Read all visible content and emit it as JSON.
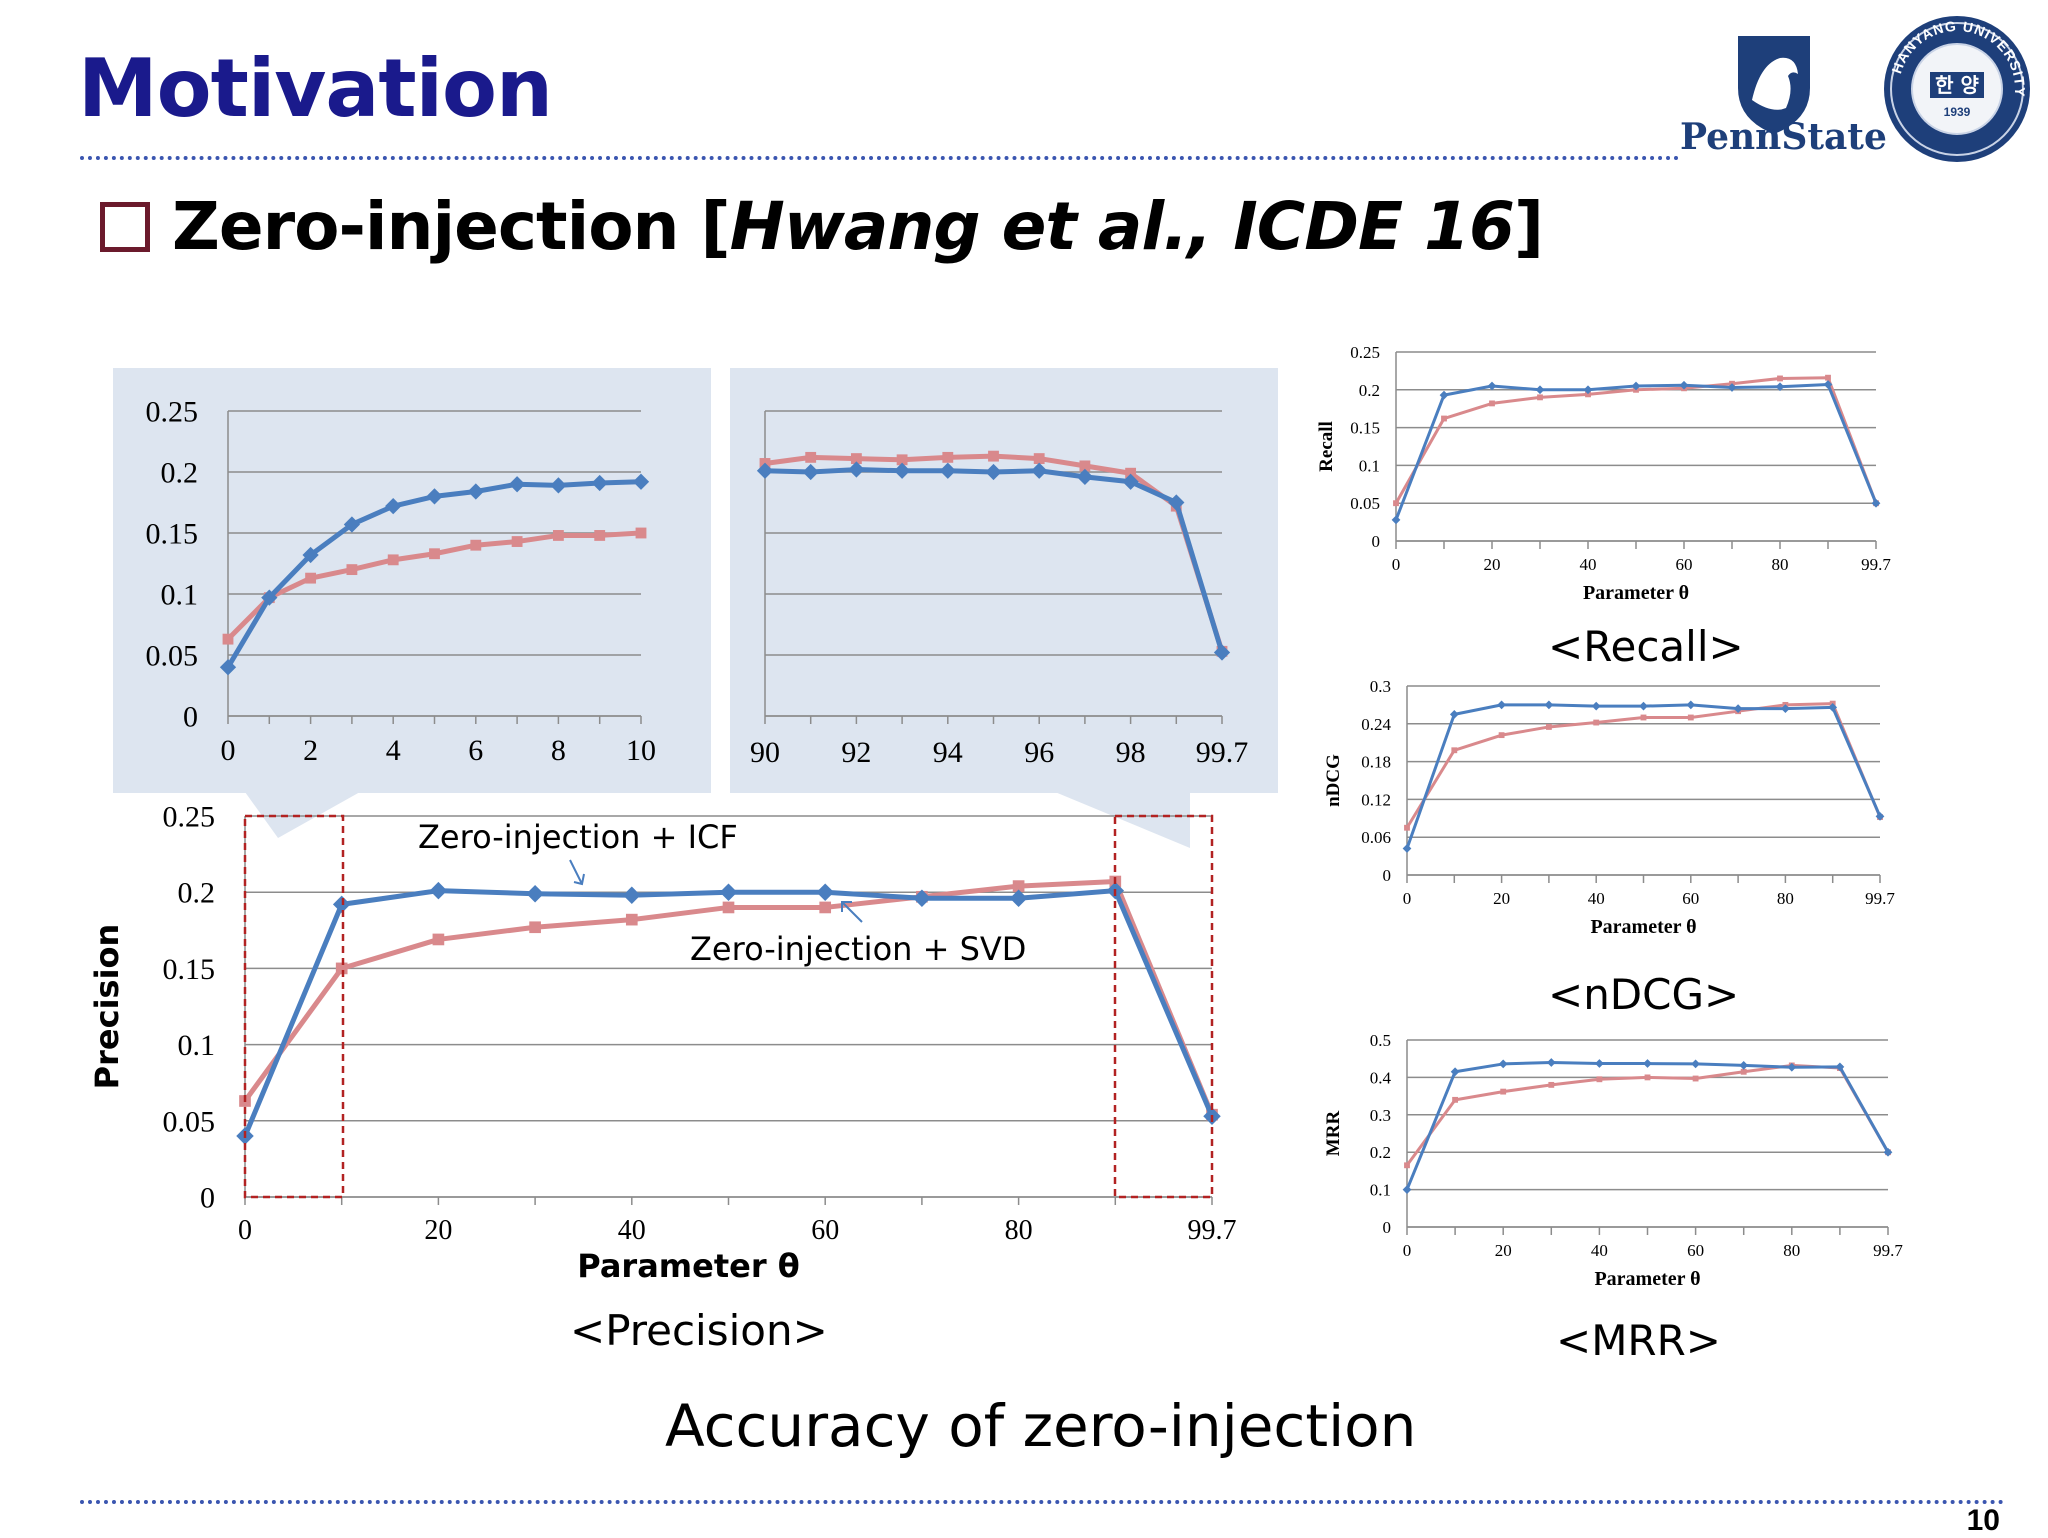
{
  "slide": {
    "title": "Motivation",
    "subtitle_plain": "Zero-injection [",
    "subtitle_italic": "Hwang et al., ICDE 16",
    "subtitle_close": "]",
    "bottom_caption": "Accuracy of zero-injection",
    "page_number": "10",
    "logos": {
      "pennstate_label": "PennState",
      "hanyang_ring": "HANYANG UNIVERSITY",
      "hanyang_center": "한 양",
      "hanyang_year": "1939"
    }
  },
  "colors": {
    "icf": "#4a7ebf",
    "svd": "#d9898c",
    "title": "#1a1a8c",
    "zoom_bg": "#dde5f0",
    "dash": "#b22222"
  },
  "chart_data": [
    {
      "id": "precision",
      "type": "line",
      "caption": "<Precision>",
      "xlabel": "Parameter θ",
      "ylabel": "Precision",
      "x": [
        0,
        10,
        20,
        30,
        40,
        50,
        60,
        70,
        80,
        90,
        99.7
      ],
      "x_ticks": [
        "0",
        "20",
        "40",
        "60",
        "80",
        "99.7"
      ],
      "y_ticks": [
        "0",
        "0.05",
        "0.1",
        "0.15",
        "0.2",
        "0.25"
      ],
      "ylim": [
        0,
        0.25
      ],
      "annotations": [
        "Zero-injection + ICF",
        "Zero-injection + SVD"
      ],
      "series": [
        {
          "name": "Zero-injection + ICF",
          "values": [
            0.04,
            0.192,
            0.201,
            0.199,
            0.198,
            0.2,
            0.2,
            0.196,
            0.196,
            0.201,
            0.053
          ]
        },
        {
          "name": "Zero-injection + SVD",
          "values": [
            0.063,
            0.15,
            0.169,
            0.177,
            0.182,
            0.19,
            0.19,
            0.197,
            0.204,
            0.207,
            0.054
          ]
        }
      ]
    },
    {
      "id": "zoom_left",
      "type": "line",
      "x": [
        0,
        1,
        2,
        3,
        4,
        5,
        6,
        7,
        8,
        9,
        10
      ],
      "x_ticks": [
        "0",
        "2",
        "4",
        "6",
        "8",
        "10"
      ],
      "y_ticks": [
        "0",
        "0.05",
        "0.1",
        "0.15",
        "0.2",
        "0.25"
      ],
      "ylim": [
        0,
        0.25
      ],
      "series": [
        {
          "values": [
            0.04,
            0.097,
            0.132,
            0.157,
            0.172,
            0.18,
            0.184,
            0.19,
            0.189,
            0.191,
            0.192
          ]
        },
        {
          "values": [
            0.063,
            0.097,
            0.113,
            0.12,
            0.128,
            0.133,
            0.14,
            0.143,
            0.148,
            0.148,
            0.15
          ]
        }
      ]
    },
    {
      "id": "zoom_right",
      "type": "line",
      "x": [
        90,
        91,
        92,
        93,
        94,
        95,
        96,
        97,
        98,
        99,
        99.7
      ],
      "x_ticks": [
        "90",
        "92",
        "94",
        "96",
        "98",
        "99.7"
      ],
      "ylim": [
        0,
        0.25
      ],
      "series": [
        {
          "values": [
            0.201,
            0.2,
            0.202,
            0.201,
            0.201,
            0.2,
            0.201,
            0.196,
            0.192,
            0.175,
            0.052
          ]
        },
        {
          "values": [
            0.207,
            0.212,
            0.211,
            0.21,
            0.212,
            0.213,
            0.211,
            0.205,
            0.199,
            0.172,
            0.053
          ]
        }
      ]
    },
    {
      "id": "recall",
      "type": "line",
      "caption": "<Recall>",
      "xlabel": "Parameter θ",
      "ylabel": "Recall",
      "x": [
        0,
        10,
        20,
        30,
        40,
        50,
        60,
        70,
        80,
        90,
        99.7
      ],
      "x_ticks": [
        "0",
        "20",
        "40",
        "60",
        "80",
        "99.7"
      ],
      "y_ticks": [
        "0",
        "0.05",
        "0.1",
        "0.15",
        "0.2",
        "0.25"
      ],
      "ylim": [
        0,
        0.25
      ],
      "series": [
        {
          "values": [
            0.028,
            0.193,
            0.205,
            0.2,
            0.2,
            0.205,
            0.206,
            0.203,
            0.204,
            0.207,
            0.05
          ]
        },
        {
          "values": [
            0.05,
            0.162,
            0.182,
            0.19,
            0.194,
            0.2,
            0.202,
            0.208,
            0.215,
            0.216,
            0.05
          ]
        }
      ]
    },
    {
      "id": "ndcg",
      "type": "line",
      "caption": "<nDCG>",
      "xlabel": "Parameter θ",
      "ylabel": "nDCG",
      "x": [
        0,
        10,
        20,
        30,
        40,
        50,
        60,
        70,
        80,
        90,
        99.7
      ],
      "x_ticks": [
        "0",
        "20",
        "40",
        "60",
        "80",
        "99.7"
      ],
      "y_ticks": [
        "0",
        "0.06",
        "0.12",
        "0.18",
        "0.24",
        "0.3"
      ],
      "ylim": [
        0,
        0.3
      ],
      "series": [
        {
          "values": [
            0.042,
            0.255,
            0.27,
            0.27,
            0.268,
            0.268,
            0.27,
            0.264,
            0.264,
            0.266,
            0.093
          ]
        },
        {
          "values": [
            0.075,
            0.198,
            0.222,
            0.235,
            0.242,
            0.25,
            0.25,
            0.26,
            0.27,
            0.272,
            0.092
          ]
        }
      ]
    },
    {
      "id": "mrr",
      "type": "line",
      "caption": "<MRR>",
      "xlabel": "Parameter θ",
      "ylabel": "MRR",
      "x": [
        0,
        10,
        20,
        30,
        40,
        50,
        60,
        70,
        80,
        90,
        99.7
      ],
      "x_ticks": [
        "0",
        "20",
        "40",
        "60",
        "80",
        "99.7"
      ],
      "y_ticks": [
        "0",
        "0.1",
        "0.2",
        "0.3",
        "0.4",
        "0.5"
      ],
      "ylim": [
        0,
        0.5
      ],
      "series": [
        {
          "values": [
            0.1,
            0.415,
            0.436,
            0.44,
            0.437,
            0.437,
            0.436,
            0.432,
            0.427,
            0.428,
            0.2
          ]
        },
        {
          "values": [
            0.165,
            0.34,
            0.362,
            0.38,
            0.395,
            0.4,
            0.397,
            0.415,
            0.432,
            0.425,
            0.2
          ]
        }
      ]
    }
  ]
}
